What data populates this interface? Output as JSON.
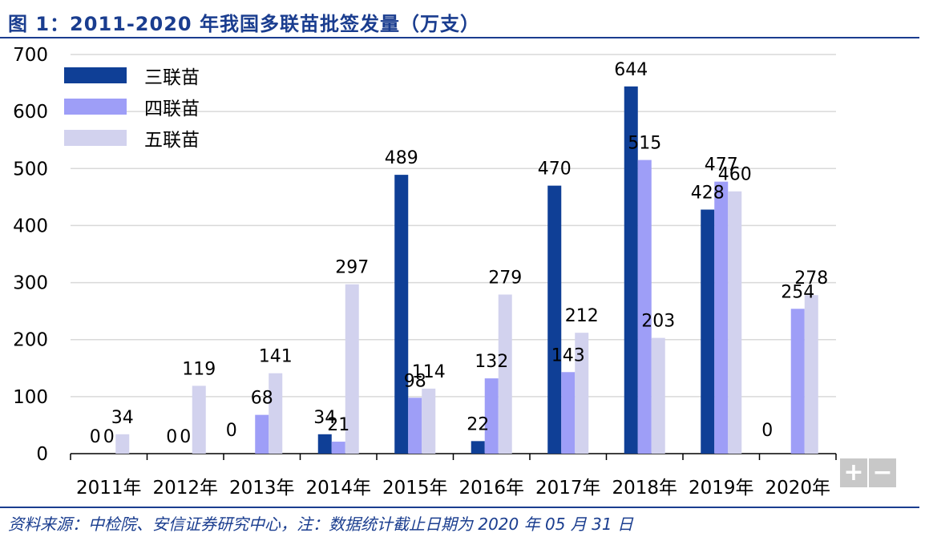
{
  "title": "图 1：2011-2020 年我国多联苗批签发量（万支）",
  "source": "资料来源：中检院、安信证券研究中心，注：数据统计截止日期为 2020 年 05 月 31 日",
  "zoom": {
    "plus": "+",
    "minus": "−"
  },
  "colors": {
    "title": "#1a3d8f",
    "grid": "#d9d9d9",
    "axis": "#000000"
  },
  "chart_data": {
    "type": "bar",
    "categories": [
      "2011年",
      "2012年",
      "2013年",
      "2014年",
      "2015年",
      "2016年",
      "2017年",
      "2018年",
      "2019年",
      "2020年"
    ],
    "series": [
      {
        "name": "三联苗",
        "color": "#0f3f96",
        "values": [
          0,
          0,
          0,
          34,
          489,
          22,
          470,
          644,
          428,
          0
        ],
        "labels": [
          "0",
          "0",
          "",
          "34",
          "489",
          "22",
          "470",
          "644",
          "428",
          ""
        ]
      },
      {
        "name": "四联苗",
        "color": "#9e9ef7",
        "values": [
          0,
          0,
          68,
          21,
          98,
          132,
          143,
          515,
          477,
          254
        ],
        "labels": [
          "0",
          "0",
          "68",
          "21",
          "98",
          "132",
          "143",
          "515",
          "477",
          "254"
        ]
      },
      {
        "name": "五联苗",
        "color": "#d2d2ee",
        "values": [
          34,
          119,
          141,
          297,
          114,
          279,
          212,
          203,
          460,
          278
        ],
        "labels": [
          "34",
          "119",
          "141",
          "297",
          "114",
          "279",
          "212",
          "203",
          "460",
          "278"
        ]
      }
    ],
    "extra_labels": [
      {
        "category": "2013年",
        "text": "0"
      },
      {
        "category": "2020年",
        "text": "0"
      }
    ],
    "yticks": [
      "0",
      "100",
      "200",
      "300",
      "400",
      "500",
      "600",
      "700"
    ],
    "ylim": [
      0,
      700
    ],
    "grid": true,
    "legend": "top-left"
  }
}
